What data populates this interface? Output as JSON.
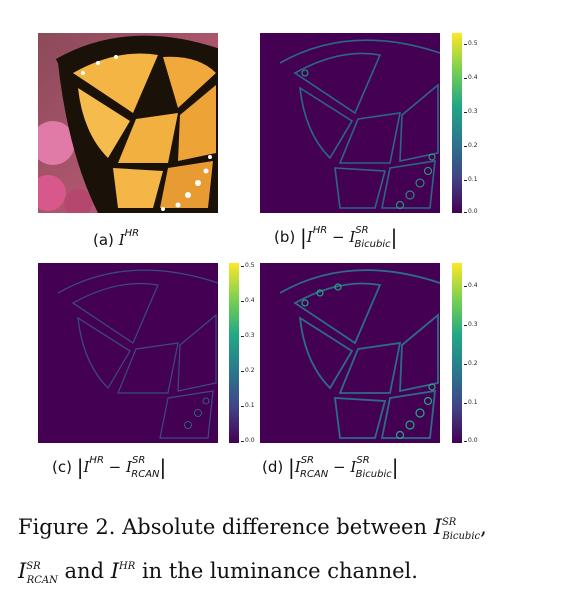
{
  "figure": {
    "caption_label": "Figure 2.",
    "caption_text": "Absolute difference between",
    "caption_and": "and",
    "caption_tail": "in the luminance channel.",
    "caption_comma": ","
  },
  "panels": [
    {
      "id": "a",
      "label": "(a)",
      "math": "I^HR"
    },
    {
      "id": "b",
      "label": "(b)",
      "math": "|I^HR − I^SR_Bicubic|",
      "colorbar_ticks": [
        "0.5",
        "0.4",
        "0.3",
        "0.2",
        "0.1",
        "0.0"
      ]
    },
    {
      "id": "c",
      "label": "(c)",
      "math": "|I^HR − I^SR_RCAN|",
      "colorbar_ticks": [
        "0.5",
        "0.4",
        "0.3",
        "0.2",
        "0.1",
        "0.0"
      ]
    },
    {
      "id": "d",
      "label": "(d)",
      "math": "|I^SR_RCAN − I^SR_Bicubic|",
      "colorbar_ticks": [
        "0.4",
        "0.3",
        "0.2",
        "0.1",
        "0.0"
      ]
    }
  ],
  "symbols": {
    "I": "I",
    "HR": "HR",
    "SR": "SR",
    "Bicubic": "Bicubic",
    "RCAN": "RCAN",
    "minus": "−",
    "bar": "|"
  },
  "colors": {
    "viridis_low": "#440154",
    "viridis_high": "#fde725",
    "butterfly_orange": "#f0a93a",
    "butterfly_black": "#1a1209",
    "flower_pink": "#d45a8c"
  }
}
